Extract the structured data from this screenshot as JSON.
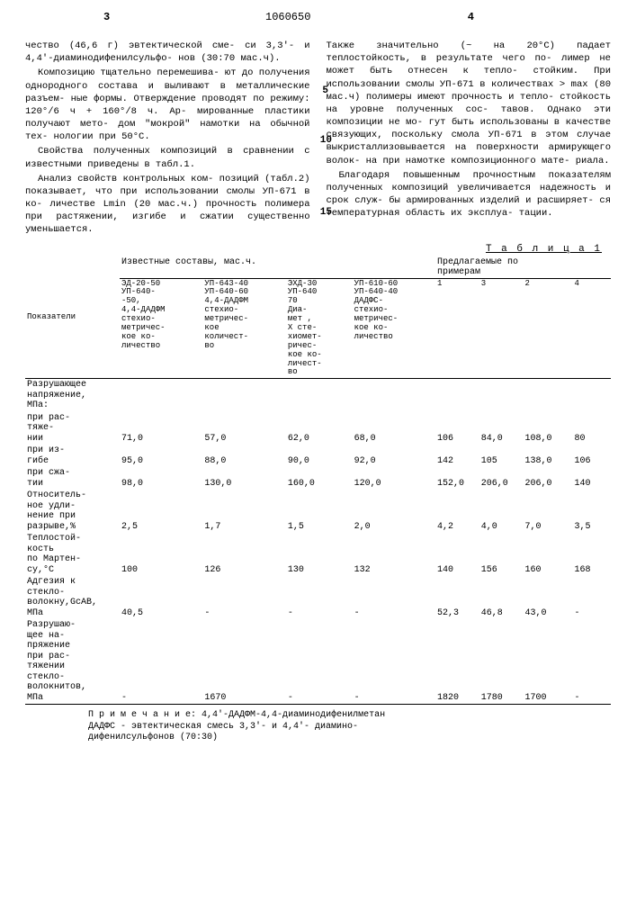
{
  "page_left": "3",
  "page_right": "4",
  "doc_number": "1060650",
  "left_col": {
    "p1": "чество (46,6 г) эвтектической сме-\nси 3,3'- и 4,4'-диаминодифенилсульфо-\nнов (30:70 мас.ч).",
    "p2": "Композицию тщательно перемешива-\nют до получения однородного состава\nи выливают в металлические разъем-\nные формы. Отверждение проводят\nпо режиму: 120°/6 ч + 160°/8 ч. Ар-\nмированные пластики получают мето-\nдом \"мокрой\" намотки на обычной тех-\nнологии при 50°С.",
    "p3": "Свойства полученных композиций\nв сравнении с известными приведены\nв табл.1.",
    "p4": "Анализ свойств контрольных ком-\nпозиций (табл.2) показывает, что\nпри использовании смолы УП-671 в ко-\nличестве Lmin (20 мас.ч.) прочность\nполимера при растяжении, изгибе\nи сжатии существенно уменьшается."
  },
  "right_col": {
    "p1": "Также значительно (~ на 20°С) падает\nтеплостойкость, в результате чего по-\nлимер не может быть отнесен к тепло-\nстойким. При использовании смолы\nУП-671 в количествах > max (80 мас.ч)\nполимеры имеют прочность и тепло-\nстойкость на уровне полученных сос-\nтавов. Однако эти композиции не мо-\nгут быть использованы в качестве\nсвязующих, поскольку смола УП-671\nв этом случае выкристаллизовывается\nна поверхности армирующего волок-\nна при намотке композиционного мате-\nриала.",
    "p2": "Благодаря повышенным прочностным\nпоказателям полученных композиций\nувеличивается надежность и срок служ-\nбы армированных изделий и расширяет-\nся температурная область их эксплуа-\nтации."
  },
  "table_caption": "Т а б л и ц а  1",
  "table": {
    "col_label": "Показатели",
    "group1": "Известные составы, мас.ч.",
    "group2": "Предлагаемые по\nпримерам",
    "headers": [
      "ЭД-20-50\nУП-640-\n-50,\n4,4-ДАДФМ\nстехио-\nметричес-\nкое ко-\nличество",
      "УП-643-40\nУП-640-60\n4,4-ДАДФМ\nстехио-\nметричес-\nкое\nколичест-\nво",
      "ЭХД-30\nУП-640\n70\nДиа-\nмет ,\nХ сте-\nхиомет-\nричес-\nкое ко-\nличест-\nво",
      "УП-610-60\nУП-640-40\nДАДФС-\nстехио-\nметричес-\nкое ко-\nличество",
      "1",
      "3",
      "2",
      "4"
    ],
    "rows": [
      {
        "label": "Разрушающее\nнапряжение,\nМПа:",
        "vals": [
          "",
          "",
          "",
          "",
          "",
          "",
          "",
          ""
        ]
      },
      {
        "label": "при рас-\nтяже-\nнии",
        "sub": 2,
        "vals": [
          "71,0",
          "57,0",
          "62,0",
          "68,0",
          "106",
          "84,0",
          "108,0",
          "80"
        ]
      },
      {
        "label": "при из-\nгибе",
        "sub": 2,
        "vals": [
          "95,0",
          "88,0",
          "90,0",
          "92,0",
          "142",
          "105",
          "138,0",
          "106"
        ]
      },
      {
        "label": "при сжа-\nтии",
        "sub": 2,
        "vals": [
          "98,0",
          "130,0",
          "160,0",
          "120,0",
          "152,0",
          "206,0",
          "206,0",
          "140"
        ]
      },
      {
        "label": "Относитель-\nное удли-\nнение при\nразрыве,%",
        "vals": [
          "2,5",
          "1,7",
          "1,5",
          "2,0",
          "4,2",
          "4,0",
          "7,0",
          "3,5"
        ]
      },
      {
        "label": "Теплостой-\nкость\nпо Мартен-\nсу,°С",
        "vals": [
          "100",
          "126",
          "130",
          "132",
          "140",
          "156",
          "160",
          "168"
        ]
      },
      {
        "label": "Адгезия к\nстекло-\nволокну,GсАВ,\nМПа",
        "vals": [
          "40,5",
          "-",
          "-",
          "-",
          "52,3",
          "46,8",
          "43,0",
          "-"
        ]
      },
      {
        "label": "Разрушаю-\nщее на-\nпряжение\nпри рас-\nтяжении\nстекло-\nволокнитов,\nМПа",
        "vals": [
          "-",
          "1670",
          "-",
          "-",
          "1820",
          "1780",
          "1700",
          "-"
        ]
      }
    ]
  },
  "note_label": "П р и м е ч а н и е:",
  "note_text": "4,4'-ДАДФМ-4,4-диаминодифенилметан\nДАДФС - эвтектическая смесь 3,3'- и 4,4'- диамино-\nдифенилсульфонов (70:30)"
}
